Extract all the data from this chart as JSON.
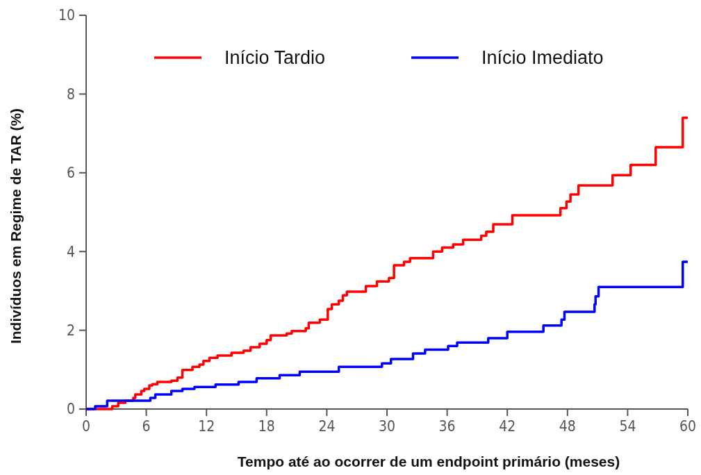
{
  "chart_data": {
    "type": "step",
    "xlabel": "Tempo até ao ocorrer de um endpoint primário (meses)",
    "ylabel": "Indivíduos em Regime de TAR (%)",
    "xlim": [
      0,
      60
    ],
    "xticks": [
      0,
      6,
      12,
      18,
      24,
      30,
      36,
      42,
      48,
      54,
      60
    ],
    "ylim": [
      0,
      10
    ],
    "yticks": [
      0,
      2,
      4,
      6,
      8,
      10
    ],
    "grid": false,
    "legend": "top",
    "marker": "none",
    "line_style": "solid",
    "series": [
      {
        "name": "Início Tardio",
        "color": "#ff0000",
        "x": [
          0,
          2.6,
          3.2,
          3.9,
          4.7,
          4.9,
          5.5,
          5.8,
          6.3,
          6.6,
          7.1,
          8.5,
          9.1,
          9.6,
          10.6,
          11.3,
          11.7,
          12.3,
          13.1,
          14.5,
          15.7,
          16.4,
          17.3,
          18,
          18.4,
          20,
          20.5,
          21.9,
          22.2,
          23.3,
          24.1,
          24.5,
          25.2,
          25.6,
          26,
          27.9,
          29,
          30.2,
          30.7,
          31.7,
          32.3,
          34.6,
          35.5,
          36.6,
          37.6,
          39.4,
          39.9,
          40.6,
          42.5,
          47.3,
          47.9,
          48.3,
          49.1,
          52.5,
          54.3,
          56.8,
          59.5,
          60
        ],
        "values": [
          0,
          0.07,
          0.16,
          0.21,
          0.28,
          0.37,
          0.46,
          0.51,
          0.6,
          0.63,
          0.69,
          0.72,
          0.8,
          0.99,
          1.07,
          1.13,
          1.22,
          1.3,
          1.36,
          1.43,
          1.48,
          1.57,
          1.66,
          1.75,
          1.87,
          1.92,
          1.98,
          2.05,
          2.19,
          2.27,
          2.54,
          2.66,
          2.75,
          2.89,
          2.98,
          3.12,
          3.24,
          3.33,
          3.65,
          3.74,
          3.83,
          4.0,
          4.1,
          4.18,
          4.3,
          4.4,
          4.5,
          4.69,
          4.92,
          5.1,
          5.27,
          5.45,
          5.68,
          5.94,
          6.2,
          6.65,
          7.4,
          7.4
        ]
      },
      {
        "name": "Início Imediato",
        "color": "#0000ff",
        "x": [
          0,
          0.9,
          2.1,
          6.4,
          6.9,
          8.5,
          9.6,
          10.8,
          12.9,
          15.2,
          17,
          19.3,
          21.3,
          25.2,
          29.5,
          30.4,
          32.6,
          33.8,
          36.1,
          37,
          40.1,
          42,
          45.6,
          47.4,
          47.7,
          50.7,
          50.8,
          51.1,
          59.5,
          60
        ],
        "values": [
          0,
          0.07,
          0.21,
          0.28,
          0.37,
          0.46,
          0.51,
          0.56,
          0.62,
          0.69,
          0.78,
          0.86,
          0.95,
          1.07,
          1.16,
          1.27,
          1.41,
          1.51,
          1.6,
          1.69,
          1.8,
          1.96,
          2.12,
          2.27,
          2.47,
          2.66,
          2.86,
          3.1,
          3.74,
          3.74
        ]
      }
    ]
  }
}
